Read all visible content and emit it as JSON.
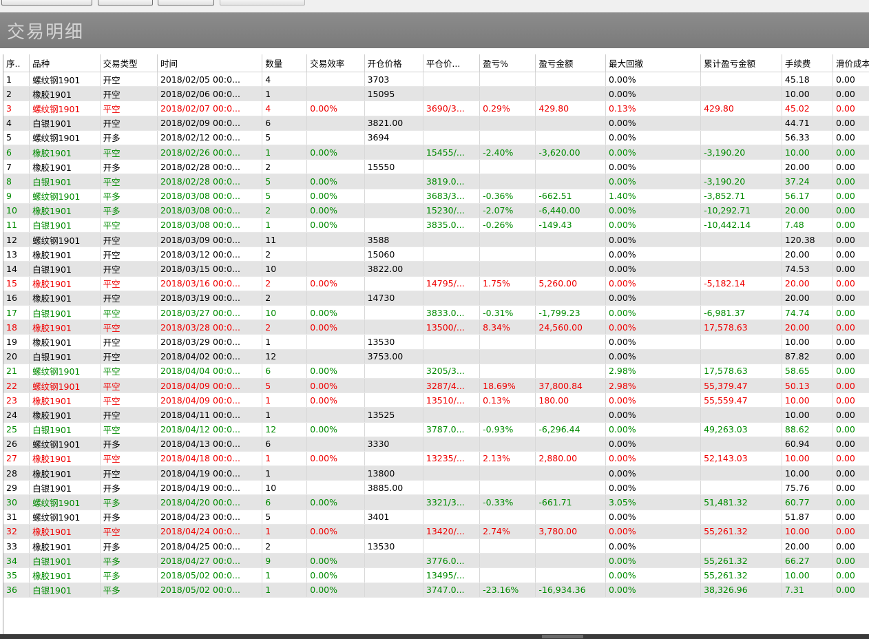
{
  "window": {
    "title": "交易明细"
  },
  "colors": {
    "normal": "#000000",
    "profit": "#ee0000",
    "loss": "#008a00",
    "header_bg": "#808080"
  },
  "columns": [
    "序..",
    "品种",
    "交易类型",
    "时间",
    "数量",
    "交易效率",
    "开仓价格",
    "平仓价...",
    "盈亏%",
    "盈亏金额",
    "最大回撤",
    "累计盈亏金额",
    "手续费",
    "滑价成本"
  ],
  "rows": [
    {
      "c": "black",
      "v": [
        "1",
        "螺纹钢1901",
        "开空",
        "2018/02/05 00:0...",
        "4",
        "",
        "3703",
        "",
        "",
        "",
        "0.00%",
        "",
        "45.18",
        "0.00"
      ]
    },
    {
      "c": "black",
      "v": [
        "2",
        "橡胶1901",
        "开空",
        "2018/02/06 00:0...",
        "1",
        "",
        "15095",
        "",
        "",
        "",
        "0.00%",
        "",
        "10.00",
        "0.00"
      ]
    },
    {
      "c": "red",
      "v": [
        "3",
        "螺纹钢1901",
        "平空",
        "2018/02/07 00:0...",
        "4",
        "0.00%",
        "",
        "3690/3...",
        "0.29%",
        "429.80",
        "0.13%",
        "429.80",
        "45.02",
        "0.00"
      ]
    },
    {
      "c": "black",
      "v": [
        "4",
        "白银1901",
        "开空",
        "2018/02/09 00:0...",
        "6",
        "",
        "3821.00",
        "",
        "",
        "",
        "0.00%",
        "",
        "44.71",
        "0.00"
      ]
    },
    {
      "c": "black",
      "v": [
        "5",
        "螺纹钢1901",
        "开多",
        "2018/02/12 00:0...",
        "5",
        "",
        "3694",
        "",
        "",
        "",
        "0.00%",
        "",
        "56.33",
        "0.00"
      ]
    },
    {
      "c": "green",
      "v": [
        "6",
        "橡胶1901",
        "平空",
        "2018/02/26 00:0...",
        "1",
        "0.00%",
        "",
        "15455/...",
        "-2.40%",
        "-3,620.00",
        "0.00%",
        "-3,190.20",
        "10.00",
        "0.00"
      ]
    },
    {
      "c": "black",
      "v": [
        "7",
        "橡胶1901",
        "开多",
        "2018/02/28 00:0...",
        "2",
        "",
        "15550",
        "",
        "",
        "",
        "0.00%",
        "",
        "20.00",
        "0.00"
      ]
    },
    {
      "c": "green",
      "v": [
        "8",
        "白银1901",
        "平空",
        "2018/02/28 00:0...",
        "5",
        "0.00%",
        "",
        "3819.0...",
        "",
        "",
        "0.00%",
        "-3,190.20",
        "37.24",
        "0.00"
      ]
    },
    {
      "c": "green",
      "v": [
        "9",
        "螺纹钢1901",
        "平多",
        "2018/03/08 00:0...",
        "5",
        "0.00%",
        "",
        "3683/3...",
        "-0.36%",
        "-662.51",
        "1.40%",
        "-3,852.71",
        "56.17",
        "0.00"
      ]
    },
    {
      "c": "green",
      "v": [
        "10",
        "橡胶1901",
        "平多",
        "2018/03/08 00:0...",
        "2",
        "0.00%",
        "",
        "15230/...",
        "-2.07%",
        "-6,440.00",
        "0.00%",
        "-10,292.71",
        "20.00",
        "0.00"
      ]
    },
    {
      "c": "green",
      "v": [
        "11",
        "白银1901",
        "平空",
        "2018/03/08 00:0...",
        "1",
        "0.00%",
        "",
        "3835.0...",
        "-0.26%",
        "-149.43",
        "0.00%",
        "-10,442.14",
        "7.48",
        "0.00"
      ]
    },
    {
      "c": "black",
      "v": [
        "12",
        "螺纹钢1901",
        "开空",
        "2018/03/09 00:0...",
        "11",
        "",
        "3588",
        "",
        "",
        "",
        "0.00%",
        "",
        "120.38",
        "0.00"
      ]
    },
    {
      "c": "black",
      "v": [
        "13",
        "橡胶1901",
        "开空",
        "2018/03/12 00:0...",
        "2",
        "",
        "15060",
        "",
        "",
        "",
        "0.00%",
        "",
        "20.00",
        "0.00"
      ]
    },
    {
      "c": "black",
      "v": [
        "14",
        "白银1901",
        "开空",
        "2018/03/15 00:0...",
        "10",
        "",
        "3822.00",
        "",
        "",
        "",
        "0.00%",
        "",
        "74.53",
        "0.00"
      ]
    },
    {
      "c": "red",
      "v": [
        "15",
        "橡胶1901",
        "平空",
        "2018/03/16 00:0...",
        "2",
        "0.00%",
        "",
        "14795/...",
        "1.75%",
        "5,260.00",
        "0.00%",
        "-5,182.14",
        "20.00",
        "0.00"
      ]
    },
    {
      "c": "black",
      "v": [
        "16",
        "橡胶1901",
        "开空",
        "2018/03/19 00:0...",
        "2",
        "",
        "14730",
        "",
        "",
        "",
        "0.00%",
        "",
        "20.00",
        "0.00"
      ]
    },
    {
      "c": "green",
      "v": [
        "17",
        "白银1901",
        "平空",
        "2018/03/27 00:0...",
        "10",
        "0.00%",
        "",
        "3833.0...",
        "-0.31%",
        "-1,799.23",
        "0.00%",
        "-6,981.37",
        "74.74",
        "0.00"
      ]
    },
    {
      "c": "red",
      "v": [
        "18",
        "橡胶1901",
        "平空",
        "2018/03/28 00:0...",
        "2",
        "0.00%",
        "",
        "13500/...",
        "8.34%",
        "24,560.00",
        "0.00%",
        "17,578.63",
        "20.00",
        "0.00"
      ]
    },
    {
      "c": "black",
      "v": [
        "19",
        "橡胶1901",
        "开空",
        "2018/03/29 00:0...",
        "1",
        "",
        "13530",
        "",
        "",
        "",
        "0.00%",
        "",
        "10.00",
        "0.00"
      ]
    },
    {
      "c": "black",
      "v": [
        "20",
        "白银1901",
        "开空",
        "2018/04/02 00:0...",
        "12",
        "",
        "3753.00",
        "",
        "",
        "",
        "0.00%",
        "",
        "87.82",
        "0.00"
      ]
    },
    {
      "c": "green",
      "v": [
        "21",
        "螺纹钢1901",
        "平空",
        "2018/04/04 00:0...",
        "6",
        "0.00%",
        "",
        "3205/3...",
        "",
        "",
        "2.98%",
        "17,578.63",
        "58.65",
        "0.00"
      ]
    },
    {
      "c": "red",
      "v": [
        "22",
        "螺纹钢1901",
        "平空",
        "2018/04/09 00:0...",
        "5",
        "0.00%",
        "",
        "3287/4...",
        "18.69%",
        "37,800.84",
        "2.98%",
        "55,379.47",
        "50.13",
        "0.00"
      ]
    },
    {
      "c": "red",
      "v": [
        "23",
        "橡胶1901",
        "平空",
        "2018/04/09 00:0...",
        "1",
        "0.00%",
        "",
        "13510/...",
        "0.13%",
        "180.00",
        "0.00%",
        "55,559.47",
        "10.00",
        "0.00"
      ]
    },
    {
      "c": "black",
      "v": [
        "24",
        "橡胶1901",
        "开空",
        "2018/04/11 00:0...",
        "1",
        "",
        "13525",
        "",
        "",
        "",
        "0.00%",
        "",
        "10.00",
        "0.00"
      ]
    },
    {
      "c": "green",
      "v": [
        "25",
        "白银1901",
        "平空",
        "2018/04/12 00:0...",
        "12",
        "0.00%",
        "",
        "3787.0...",
        "-0.93%",
        "-6,296.44",
        "0.00%",
        "49,263.03",
        "88.62",
        "0.00"
      ]
    },
    {
      "c": "black",
      "v": [
        "26",
        "螺纹钢1901",
        "开多",
        "2018/04/13 00:0...",
        "6",
        "",
        "3330",
        "",
        "",
        "",
        "0.00%",
        "",
        "60.94",
        "0.00"
      ]
    },
    {
      "c": "red",
      "v": [
        "27",
        "橡胶1901",
        "平空",
        "2018/04/18 00:0...",
        "1",
        "0.00%",
        "",
        "13235/...",
        "2.13%",
        "2,880.00",
        "0.00%",
        "52,143.03",
        "10.00",
        "0.00"
      ]
    },
    {
      "c": "black",
      "v": [
        "28",
        "橡胶1901",
        "开空",
        "2018/04/19 00:0...",
        "1",
        "",
        "13800",
        "",
        "",
        "",
        "0.00%",
        "",
        "10.00",
        "0.00"
      ]
    },
    {
      "c": "black",
      "v": [
        "29",
        "白银1901",
        "开多",
        "2018/04/19 00:0...",
        "10",
        "",
        "3885.00",
        "",
        "",
        "",
        "0.00%",
        "",
        "75.76",
        "0.00"
      ]
    },
    {
      "c": "green",
      "v": [
        "30",
        "螺纹钢1901",
        "平多",
        "2018/04/20 00:0...",
        "6",
        "0.00%",
        "",
        "3321/3...",
        "-0.33%",
        "-661.71",
        "3.05%",
        "51,481.32",
        "60.77",
        "0.00"
      ]
    },
    {
      "c": "black",
      "v": [
        "31",
        "螺纹钢1901",
        "开多",
        "2018/04/23 00:0...",
        "5",
        "",
        "3401",
        "",
        "",
        "",
        "0.00%",
        "",
        "51.87",
        "0.00"
      ]
    },
    {
      "c": "red",
      "v": [
        "32",
        "橡胶1901",
        "平空",
        "2018/04/24 00:0...",
        "1",
        "0.00%",
        "",
        "13420/...",
        "2.74%",
        "3,780.00",
        "0.00%",
        "55,261.32",
        "10.00",
        "0.00"
      ]
    },
    {
      "c": "black",
      "v": [
        "33",
        "橡胶1901",
        "开多",
        "2018/04/25 00:0...",
        "2",
        "",
        "13530",
        "",
        "",
        "",
        "0.00%",
        "",
        "20.00",
        "0.00"
      ]
    },
    {
      "c": "green",
      "v": [
        "34",
        "白银1901",
        "平多",
        "2018/04/27 00:0...",
        "9",
        "0.00%",
        "",
        "3776.0...",
        "",
        "",
        "0.00%",
        "55,261.32",
        "66.27",
        "0.00"
      ]
    },
    {
      "c": "green",
      "v": [
        "35",
        "橡胶1901",
        "平多",
        "2018/05/02 00:0...",
        "1",
        "0.00%",
        "",
        "13495/...",
        "",
        "",
        "0.00%",
        "55,261.32",
        "10.00",
        "0.00"
      ]
    },
    {
      "c": "green",
      "v": [
        "36",
        "白银1901",
        "平多",
        "2018/05/02 00:0...",
        "1",
        "0.00%",
        "",
        "3747.0...",
        "-23.16%",
        "-16,934.36",
        "0.00%",
        "38,326.96",
        "7.31",
        "0.00"
      ]
    }
  ]
}
